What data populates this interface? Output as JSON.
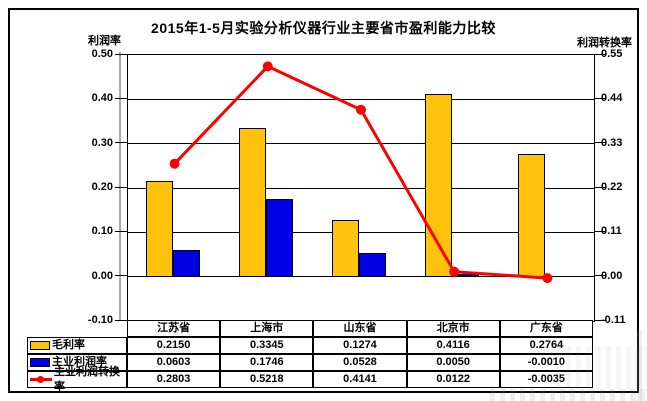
{
  "title": "2015年1-5月实验分析仪器行业主要省市盈利能力比较",
  "axes": {
    "left_label": "利润率",
    "right_label": "利润转换率",
    "left_ticks": [
      "0.50",
      "0.40",
      "0.30",
      "0.20",
      "0.10",
      "0.00",
      "-0.10"
    ],
    "right_ticks": [
      "0.55",
      "0.44",
      "0.33",
      "0.22",
      "0.11",
      "0.00",
      "-0.11"
    ]
  },
  "chart_data": {
    "type": "bar",
    "subtype": "bar+line combo, dual axis",
    "title": "2015年1-5月实验分析仪器行业主要省市盈利能力比较",
    "categories": [
      "江苏省",
      "上海市",
      "山东省",
      "北京市",
      "广东省"
    ],
    "series": [
      {
        "name": "毛利率",
        "type": "bar",
        "axis": "left",
        "color": "#FFC30B",
        "values": [
          0.215,
          0.3345,
          0.1274,
          0.4116,
          0.2764
        ]
      },
      {
        "name": "主业利润率",
        "type": "bar",
        "axis": "left",
        "color": "#0000E6",
        "values": [
          0.0603,
          0.1746,
          0.0528,
          0.005,
          -0.001
        ]
      },
      {
        "name": "主业利润转换率",
        "type": "line",
        "axis": "right",
        "color": "#FF0000",
        "values": [
          0.2803,
          0.5218,
          0.4141,
          0.0122,
          -0.0035
        ]
      }
    ],
    "left_axis": {
      "label": "利润率",
      "min": -0.1,
      "max": 0.5,
      "step": 0.1
    },
    "right_axis": {
      "label": "利润转换率",
      "min": -0.11,
      "max": 0.55,
      "step": 0.11
    },
    "grid": true,
    "legend_position": "bottom-data-table"
  },
  "table": {
    "columns": [
      "江苏省",
      "上海市",
      "山东省",
      "北京市",
      "广东省"
    ],
    "rows": [
      {
        "label": "毛利率",
        "swatch": "bar-yellow",
        "values": [
          "0.2150",
          "0.3345",
          "0.1274",
          "0.4116",
          "0.2764"
        ]
      },
      {
        "label": "主业利润率",
        "swatch": "bar-blue",
        "values": [
          "0.0603",
          "0.1746",
          "0.0528",
          "0.0050",
          "-0.0010"
        ]
      },
      {
        "label": "主业利润转换率",
        "swatch": "line-red",
        "values": [
          "0.2803",
          "0.5218",
          "0.4141",
          "0.0122",
          "-0.0035"
        ]
      }
    ]
  },
  "colors": {
    "bar_gross_margin": "#FFC30B",
    "bar_main_profit": "#0000E6",
    "line_conversion": "#FF0000",
    "axis_gray": "#A9A9A9",
    "border": "#000000"
  }
}
